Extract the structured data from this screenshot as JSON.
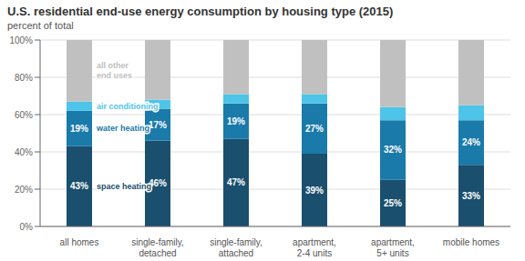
{
  "chart_data": {
    "type": "bar",
    "title": "U.S. residential end-use energy consumption by housing type (2015)",
    "subtitle": "percent of total",
    "categories": [
      "all homes",
      "single-family,\ndetached",
      "single-family,\nattached",
      "apartment,\n2-4 units",
      "apartment,\n5+ units",
      "mobile homes"
    ],
    "series": [
      {
        "name": "space heating",
        "color": "#1a4f6e",
        "values": [
          43,
          46,
          47,
          39,
          25,
          33
        ],
        "data_labels": true,
        "value_labels": [
          "43%",
          "46%",
          "47%",
          "39%",
          "25%",
          "33%"
        ]
      },
      {
        "name": "water heating",
        "color": "#1a7aaa",
        "values": [
          19,
          17,
          19,
          27,
          32,
          24
        ],
        "data_labels": true,
        "value_labels": [
          "19%",
          "17%",
          "19%",
          "27%",
          "32%",
          "24%"
        ]
      },
      {
        "name": "air conditioning",
        "color": "#4dc4e8",
        "values": [
          5,
          5,
          5,
          5,
          7,
          8
        ]
      },
      {
        "name": "all other\nend uses",
        "color": "#c0c0c0",
        "values": [
          33,
          32,
          29,
          29,
          36,
          35
        ]
      }
    ],
    "stacked": true,
    "ylim": [
      0,
      100
    ],
    "yticks": [
      {
        "value": 0,
        "label": "0%"
      },
      {
        "value": 20,
        "label": "20%"
      },
      {
        "value": 40,
        "label": "40%"
      },
      {
        "value": 60,
        "label": "60%"
      },
      {
        "value": 80,
        "label": "80%"
      },
      {
        "value": 100,
        "label": "100%"
      }
    ],
    "grid": true
  }
}
